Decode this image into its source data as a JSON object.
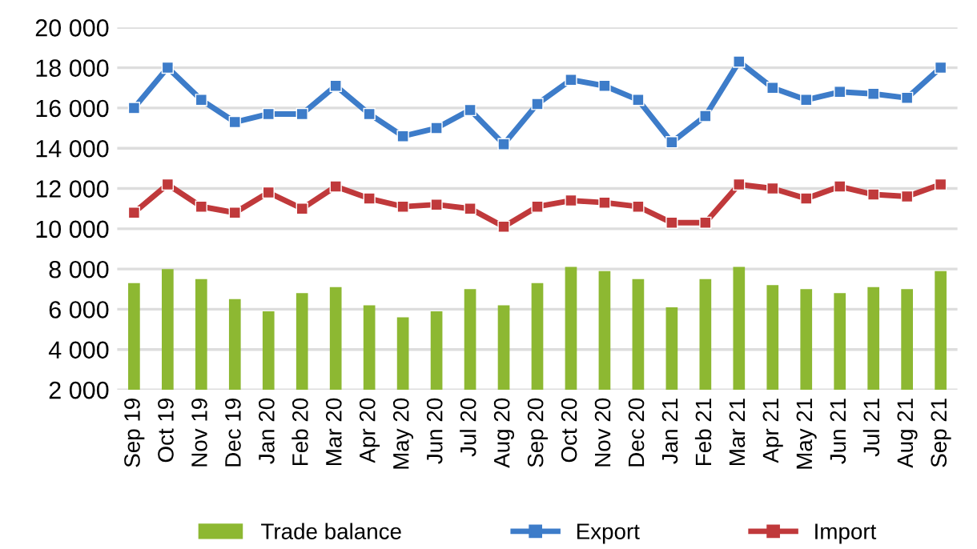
{
  "chart_data": {
    "type": "bar",
    "categories": [
      "Sep 19",
      "Oct 19",
      "Nov 19",
      "Dec 19",
      "Jan 20",
      "Feb 20",
      "Mar 20",
      "Apr 20",
      "May 20",
      "Jun 20",
      "Jul 20",
      "Aug 20",
      "Sep 20",
      "Oct 20",
      "Nov 20",
      "Dec 20",
      "Jan 21",
      "Feb 21",
      "Mar 21",
      "Apr 21",
      "May 21",
      "Jun 21",
      "Jul 21",
      "Aug 21",
      "Sep 21"
    ],
    "series": [
      {
        "name": "Trade balance",
        "color": "#8db832",
        "values": [
          7300,
          8000,
          7500,
          6500,
          5900,
          6800,
          7100,
          6200,
          5600,
          5900,
          7000,
          6200,
          7300,
          8100,
          7900,
          7500,
          6100,
          7500,
          8100,
          7200,
          7000,
          6800,
          7100,
          7000,
          7900
        ]
      },
      {
        "name": "Export",
        "type": "line",
        "color": "#3d7cc9",
        "values": [
          16000,
          18000,
          16400,
          15300,
          15700,
          15700,
          17100,
          15700,
          14600,
          15000,
          15900,
          14200,
          16200,
          17400,
          17100,
          16400,
          14300,
          15600,
          18300,
          17000,
          16400,
          16800,
          16700,
          16500,
          18000
        ]
      },
      {
        "name": "Import",
        "type": "line",
        "color": "#c0393b",
        "values": [
          10800,
          12200,
          11100,
          10800,
          11800,
          11000,
          12100,
          11500,
          11100,
          11200,
          11000,
          10100,
          11100,
          11400,
          11300,
          11100,
          10300,
          10300,
          12200,
          12000,
          11500,
          12100,
          11700,
          11600,
          12200
        ]
      }
    ],
    "ylim": [
      2000,
      20000
    ],
    "yticks": [
      {
        "value": 2000,
        "label": "2 000"
      },
      {
        "value": 4000,
        "label": "4 000"
      },
      {
        "value": 6000,
        "label": "6 000"
      },
      {
        "value": 8000,
        "label": "8 000"
      },
      {
        "value": 10000,
        "label": "10 000"
      },
      {
        "value": 12000,
        "label": "12 000"
      },
      {
        "value": 14000,
        "label": "14 000"
      },
      {
        "value": 16000,
        "label": "16 000"
      },
      {
        "value": 18000,
        "label": "18 000"
      },
      {
        "value": 20000,
        "label": "20 000"
      }
    ],
    "grid": "y",
    "legend": "bottom",
    "marker": "square",
    "line_style": "solid"
  }
}
